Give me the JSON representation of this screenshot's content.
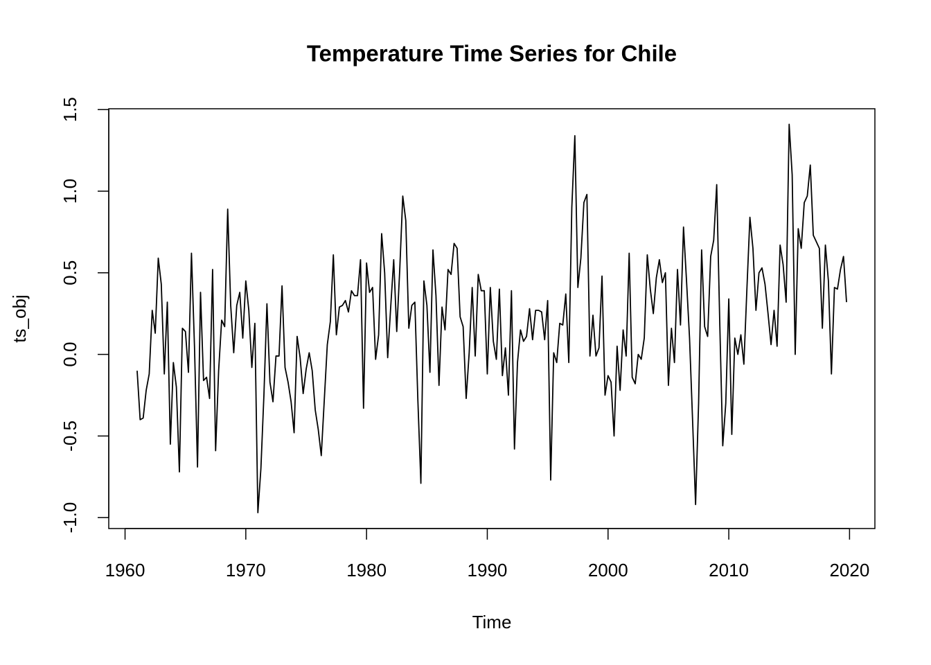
{
  "chart_data": {
    "type": "line",
    "title": "Temperature Time Series for Chile",
    "x_label": "Time",
    "y_label": "ts_obj",
    "color": "#000000",
    "x": [
      1961,
      1961.25,
      1961.5,
      1961.75,
      1962,
      1962.25,
      1962.5,
      1962.75,
      1963,
      1963.25,
      1963.5,
      1963.75,
      1964,
      1964.25,
      1964.5,
      1964.75,
      1965,
      1965.25,
      1965.5,
      1965.75,
      1966,
      1966.25,
      1966.5,
      1966.75,
      1967,
      1967.25,
      1967.5,
      1967.75,
      1968,
      1968.25,
      1968.5,
      1968.75,
      1969,
      1969.25,
      1969.5,
      1969.75,
      1970,
      1970.25,
      1970.5,
      1970.75,
      1971,
      1971.25,
      1971.5,
      1971.75,
      1972,
      1972.25,
      1972.5,
      1972.75,
      1973,
      1973.25,
      1973.5,
      1973.75,
      1974,
      1974.25,
      1974.5,
      1974.75,
      1975,
      1975.25,
      1975.5,
      1975.75,
      1976,
      1976.25,
      1976.5,
      1976.75,
      1977,
      1977.25,
      1977.5,
      1977.75,
      1978,
      1978.25,
      1978.5,
      1978.75,
      1979,
      1979.25,
      1979.5,
      1979.75,
      1980,
      1980.25,
      1980.5,
      1980.75,
      1981,
      1981.25,
      1981.5,
      1981.75,
      1982,
      1982.25,
      1982.5,
      1982.75,
      1983,
      1983.25,
      1983.5,
      1983.75,
      1984,
      1984.25,
      1984.5,
      1984.75,
      1985,
      1985.25,
      1985.5,
      1985.75,
      1986,
      1986.25,
      1986.5,
      1986.75,
      1987,
      1987.25,
      1987.5,
      1987.75,
      1988,
      1988.25,
      1988.5,
      1988.75,
      1989,
      1989.25,
      1989.5,
      1989.75,
      1990,
      1990.25,
      1990.5,
      1990.75,
      1991,
      1991.25,
      1991.5,
      1991.75,
      1992,
      1992.25,
      1992.5,
      1992.75,
      1993,
      1993.25,
      1993.5,
      1993.75,
      1994,
      1994.25,
      1994.5,
      1994.75,
      1995,
      1995.25,
      1995.5,
      1995.75,
      1996,
      1996.25,
      1996.5,
      1996.75,
      1997,
      1997.25,
      1997.5,
      1997.75,
      1998,
      1998.25,
      1998.5,
      1998.75,
      1999,
      1999.25,
      1999.5,
      1999.75,
      2000,
      2000.25,
      2000.5,
      2000.75,
      2001,
      2001.25,
      2001.5,
      2001.75,
      2002,
      2002.25,
      2002.5,
      2002.75,
      2003,
      2003.25,
      2003.5,
      2003.75,
      2004,
      2004.25,
      2004.5,
      2004.75,
      2005,
      2005.25,
      2005.5,
      2005.75,
      2006,
      2006.25,
      2006.5,
      2006.75,
      2007,
      2007.25,
      2007.5,
      2007.75,
      2008,
      2008.25,
      2008.5,
      2008.75,
      2009,
      2009.25,
      2009.5,
      2009.75,
      2010,
      2010.25,
      2010.5,
      2010.75,
      2011,
      2011.25,
      2011.5,
      2011.75,
      2012,
      2012.25,
      2012.5,
      2012.75,
      2013,
      2013.25,
      2013.5,
      2013.75,
      2014,
      2014.25,
      2014.5,
      2014.75,
      2015,
      2015.25,
      2015.5,
      2015.75,
      2016,
      2016.25,
      2016.5,
      2016.75,
      2017,
      2017.25,
      2017.5,
      2017.75,
      2018,
      2018.25,
      2018.5,
      2018.75,
      2019,
      2019.25,
      2019.5,
      2019.75
    ],
    "values": [
      -0.1,
      -0.4,
      -0.39,
      -0.22,
      -0.12,
      0.27,
      0.13,
      0.59,
      0.43,
      -0.12,
      0.32,
      -0.55,
      -0.05,
      -0.2,
      -0.72,
      0.16,
      0.14,
      -0.11,
      0.62,
      0.05,
      -0.69,
      0.38,
      -0.16,
      -0.14,
      -0.27,
      0.52,
      -0.59,
      -0.1,
      0.21,
      0.17,
      0.89,
      0.3,
      0.01,
      0.3,
      0.38,
      0.1,
      0.45,
      0.27,
      -0.08,
      0.19,
      -0.97,
      -0.7,
      -0.25,
      0.31,
      -0.17,
      -0.29,
      -0.01,
      -0.01,
      0.42,
      -0.08,
      -0.17,
      -0.29,
      -0.48,
      0.11,
      -0.02,
      -0.24,
      -0.09,
      0.01,
      -0.1,
      -0.34,
      -0.46,
      -0.62,
      -0.28,
      0.06,
      0.2,
      0.61,
      0.12,
      0.29,
      0.3,
      0.33,
      0.26,
      0.39,
      0.36,
      0.36,
      0.58,
      -0.33,
      0.56,
      0.38,
      0.41,
      -0.03,
      0.12,
      0.74,
      0.5,
      -0.02,
      0.29,
      0.58,
      0.14,
      0.52,
      0.97,
      0.82,
      0.16,
      0.3,
      0.32,
      -0.28,
      -0.79,
      0.45,
      0.3,
      -0.11,
      0.64,
      0.36,
      -0.19,
      0.29,
      0.15,
      0.52,
      0.49,
      0.68,
      0.65,
      0.23,
      0.17,
      -0.27,
      0.01,
      0.41,
      -0.01,
      0.49,
      0.39,
      0.39,
      -0.12,
      0.41,
      0.08,
      -0.03,
      0.4,
      -0.13,
      0.04,
      -0.25,
      0.39,
      -0.58,
      -0.05,
      0.15,
      0.08,
      0.11,
      0.28,
      0.09,
      0.27,
      0.27,
      0.26,
      0.09,
      0.33,
      -0.77,
      0.01,
      -0.05,
      0.19,
      0.18,
      0.37,
      -0.05,
      0.9,
      1.34,
      0.41,
      0.59,
      0.93,
      0.98,
      -0.01,
      0.24,
      -0.01,
      0.04,
      0.48,
      -0.25,
      -0.13,
      -0.17,
      -0.5,
      0.05,
      -0.22,
      0.15,
      -0.01,
      0.62,
      -0.14,
      -0.18,
      0.0,
      -0.03,
      0.1,
      0.61,
      0.4,
      0.25,
      0.47,
      0.58,
      0.44,
      0.5,
      -0.19,
      0.16,
      -0.05,
      0.52,
      0.18,
      0.78,
      0.45,
      0.1,
      -0.4,
      -0.92,
      -0.3,
      0.64,
      0.17,
      0.11,
      0.6,
      0.7,
      1.04,
      0.2,
      -0.56,
      -0.3,
      0.34,
      -0.49,
      0.1,
      0.0,
      0.12,
      -0.06,
      0.4,
      0.84,
      0.65,
      0.27,
      0.5,
      0.53,
      0.43,
      0.25,
      0.06,
      0.27,
      0.05,
      0.67,
      0.55,
      0.32,
      1.41,
      1.1,
      0.0,
      0.77,
      0.65,
      0.93,
      0.97,
      1.16,
      0.73,
      0.69,
      0.65,
      0.16,
      0.67,
      0.45,
      -0.12,
      0.41,
      0.4,
      0.52,
      0.6,
      0.32
    ],
    "xlim": [
      1958.65,
      2022.1
    ],
    "ylim": [
      -1.067,
      1.505
    ],
    "xticks": [
      1960,
      1970,
      1980,
      1990,
      2000,
      2010,
      2020
    ],
    "yticks": [
      {
        "value": -1,
        "label": "-1.0"
      },
      -0.5,
      {
        "value": 0,
        "label": "0.0"
      },
      0.5,
      {
        "value": 1,
        "label": "1.0"
      },
      1.5
    ]
  }
}
